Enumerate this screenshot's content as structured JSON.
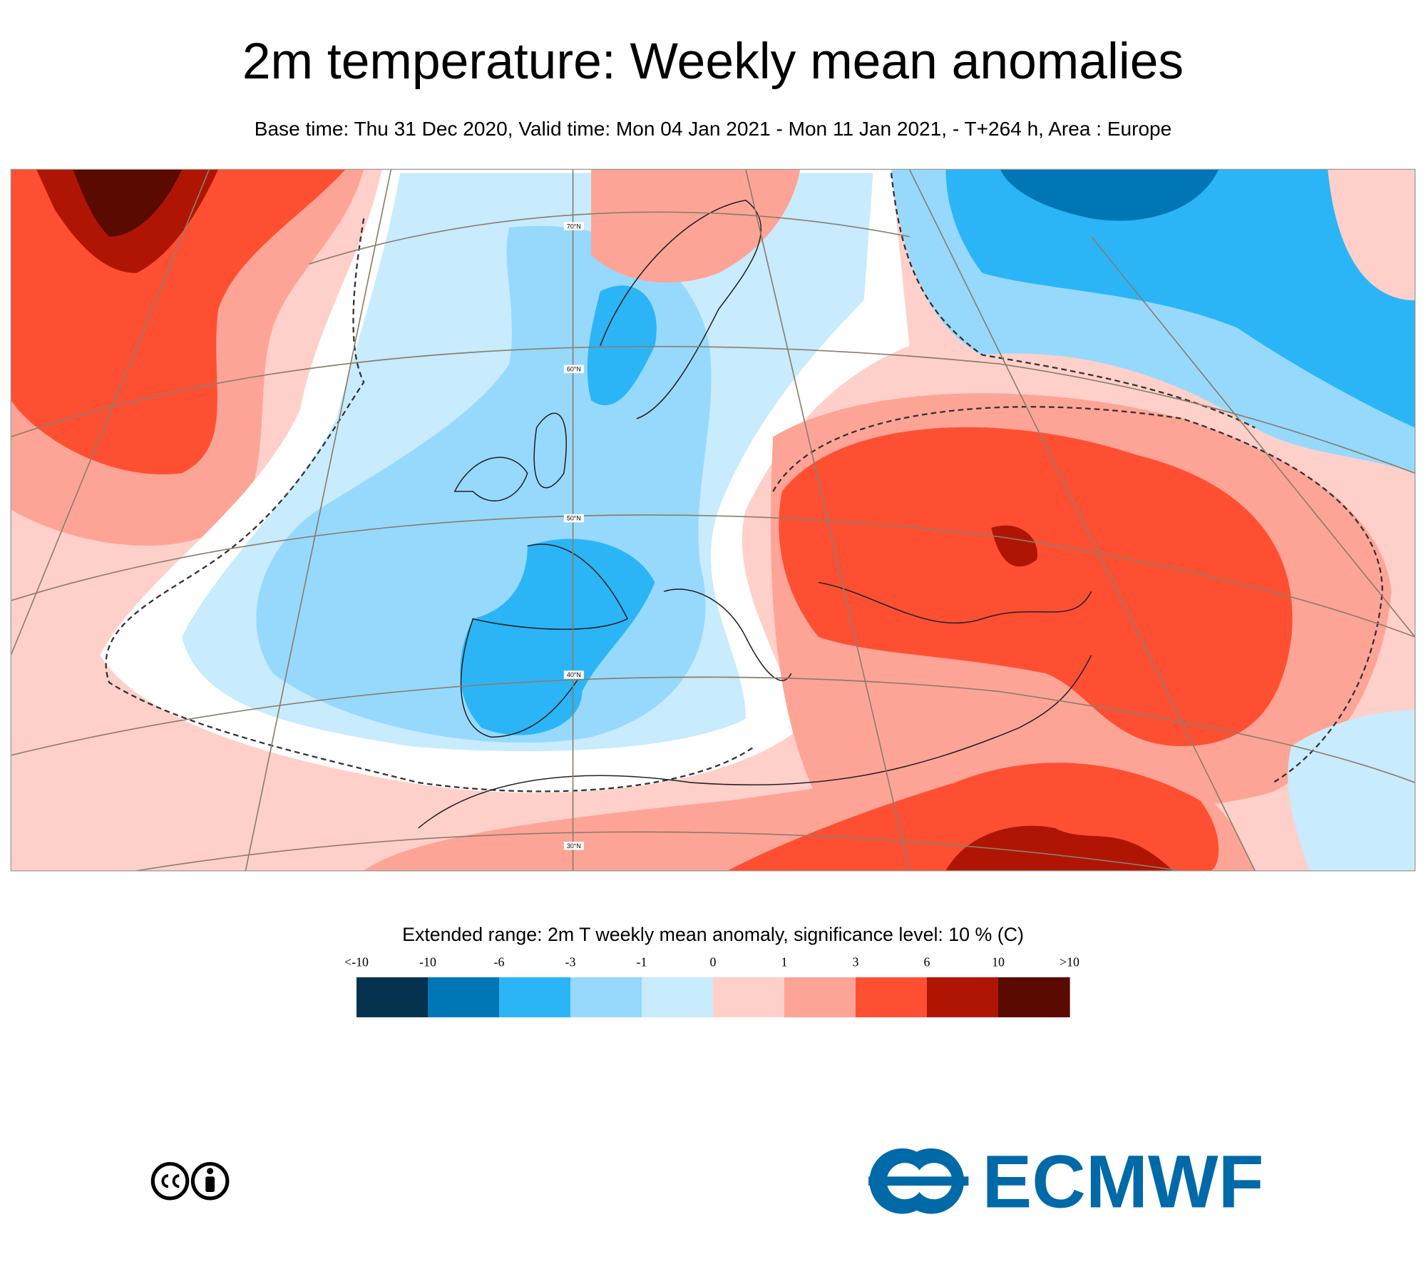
{
  "header": {
    "title": "2m temperature: Weekly mean anomalies",
    "subtitle": "Base time: Thu 31 Dec 2020, Valid time: Mon 04 Jan 2021 - Mon 11 Jan 2021, - T+264 h, Area : Europe"
  },
  "map": {
    "lat_labels": [
      "70°N",
      "60°N",
      "50°N",
      "40°N",
      "30°N"
    ]
  },
  "legend": {
    "title": "Extended range: 2m T weekly mean anomaly, significance level: 10 % (C)",
    "levels": [
      "<-10",
      "-10",
      "-6",
      "-3",
      "-1",
      "0",
      "1",
      "3",
      "6",
      "10",
      ">10"
    ],
    "colors": [
      "#04324f",
      "#0076b6",
      "#2bb5f7",
      "#97d9fc",
      "#c8ebfd",
      "#ffd0ca",
      "#fea496",
      "#ff4f33",
      "#b01503",
      "#5a0a00"
    ]
  },
  "logo": {
    "text": "ECMWF"
  }
}
